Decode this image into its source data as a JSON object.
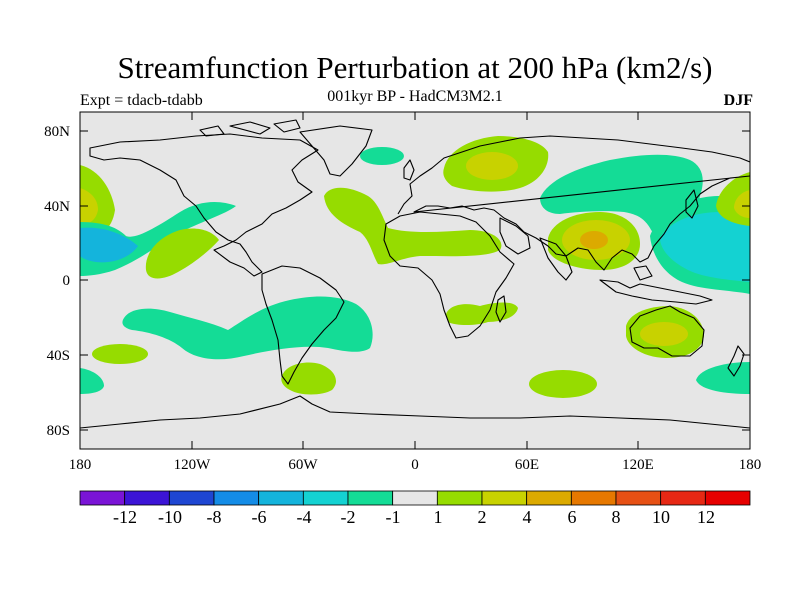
{
  "title": "Streamfunction Perturbation at 200 hPa (km2/s)",
  "experiment": "Expt = tdacb-tdabb",
  "subtitle": "001kyr BP - HadCM3M2.1",
  "season": "DJF",
  "lat_labels": [
    "80N",
    "40N",
    "0",
    "40S",
    "80S"
  ],
  "lon_labels": [
    "180",
    "120W",
    "60W",
    "0",
    "60E",
    "120E",
    "180"
  ],
  "colorbar": {
    "labels": [
      "-12",
      "-10",
      "-8",
      "-6",
      "-4",
      "-2",
      "-1",
      "1",
      "2",
      "4",
      "6",
      "8",
      "10",
      "12"
    ],
    "colors": [
      "#7a14d6",
      "#3c14d6",
      "#1e46d2",
      "#148ce6",
      "#14b4dc",
      "#14d2d2",
      "#14dc96",
      "#e6e6e6",
      "#96dc00",
      "#c8d200",
      "#dcaa00",
      "#e67800",
      "#e65014",
      "#e62814",
      "#e60000"
    ]
  },
  "map": {
    "background": "#e6e6e6",
    "anomalies": [
      {
        "name": "north-pacific-west-positive",
        "level": "4",
        "color": "#c8d200",
        "lat": 42,
        "lon": -172
      },
      {
        "name": "central-pacific-negative",
        "level": "-4",
        "color": "#14b4dc",
        "lat": 20,
        "lon": -175
      },
      {
        "name": "tropical-pacific-negative",
        "level": "-2",
        "color": "#14dc96",
        "lat": 12,
        "lon": -135
      },
      {
        "name": "eastern-pacific-positive",
        "level": "2",
        "color": "#96dc00",
        "lat": 15,
        "lon": -118
      },
      {
        "name": "north-atlantic-positive",
        "level": "2",
        "color": "#96dc00",
        "lat": 42,
        "lon": -35
      },
      {
        "name": "arctic-negative",
        "level": "-2",
        "color": "#14dc96",
        "lat": 68,
        "lon": -15
      },
      {
        "name": "europe-positive",
        "level": "4",
        "color": "#c8d200",
        "lat": 62,
        "lon": 40
      },
      {
        "name": "asia-negative",
        "level": "-2",
        "color": "#14dc96",
        "lat": 55,
        "lon": 110
      },
      {
        "name": "tibet-positive",
        "level": "6",
        "color": "#dcaa00",
        "lat": 22,
        "lon": 98
      },
      {
        "name": "west-pacific-negative",
        "level": "-4",
        "color": "#14b4dc",
        "lat": 20,
        "lon": 165
      },
      {
        "name": "australia-positive",
        "level": "4",
        "color": "#c8d200",
        "lat": -30,
        "lon": 130
      },
      {
        "name": "south-atlantic-positive",
        "level": "2",
        "color": "#96dc00",
        "lat": -50,
        "lon": -60
      },
      {
        "name": "southern-indian-positive",
        "level": "2",
        "color": "#96dc00",
        "lat": -55,
        "lon": 78
      }
    ]
  }
}
